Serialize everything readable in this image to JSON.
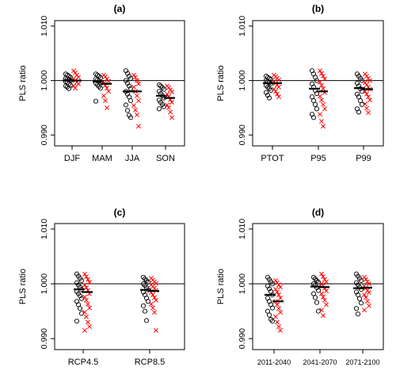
{
  "colors": {
    "black_series": "#000000",
    "red_series": "#ff0000",
    "reference_line": "#000000"
  },
  "chart_data": [
    {
      "type": "scatter",
      "title": "(a)",
      "ylabel": "PLS ratio",
      "ylim": [
        0.988,
        1.011
      ],
      "yticks": [
        "0.990",
        "1.000",
        "1.010"
      ],
      "ytick_values": [
        0.99,
        1.0,
        1.01
      ],
      "reference_line": 1.0,
      "categories": [
        "DJF",
        "MAM",
        "JJA",
        "SON"
      ],
      "series": [
        {
          "marker": "circle",
          "color": "#000000",
          "values": [
            [
              1.0012,
              1.001,
              1.0008,
              1.0006,
              1.0004,
              1.0003,
              1.0002,
              1.0,
              0.9998,
              0.9996,
              0.9994,
              0.9992,
              0.999,
              0.9988,
              0.9985
            ],
            [
              1.0012,
              1.001,
              1.0008,
              1.0005,
              1.0003,
              1.0001,
              0.9999,
              0.9997,
              0.9995,
              0.9992,
              0.9989,
              0.9986,
              0.9962
            ],
            [
              1.0018,
              1.0013,
              1.0008,
              1.0004,
              1.0,
              0.9995,
              0.999,
              0.9985,
              0.998,
              0.9975,
              0.997,
              0.9963,
              0.9955,
              0.9945,
              0.9936,
              0.9932
            ],
            [
              0.9992,
              0.999,
              0.9987,
              0.9984,
              0.998,
              0.9976,
              0.9972,
              0.9968,
              0.9964,
              0.996,
              0.9956,
              0.9952,
              0.9948
            ]
          ],
          "means": [
            1.0,
            0.9998,
            0.998,
            0.9972
          ]
        },
        {
          "marker": "cross",
          "color": "#ff0000",
          "values": [
            [
              1.0018,
              1.0014,
              1.001,
              1.0006,
              1.0003,
              1.0,
              0.9997,
              0.9994,
              0.999,
              0.9986
            ],
            [
              1.001,
              1.0007,
              1.0003,
              0.9999,
              0.9995,
              0.9991,
              0.9986,
              0.998,
              0.9972,
              0.9963,
              0.995
            ],
            [
              1.001,
              1.0006,
              1.0,
              0.9994,
              0.9988,
              0.998,
              0.9972,
              0.9963,
              0.9954,
              0.9946,
              0.9937,
              0.9916
            ],
            [
              0.999,
              0.9987,
              0.9983,
              0.9979,
              0.9975,
              0.997,
              0.9965,
              0.996,
              0.9955,
              0.995,
              0.9942,
              0.9932
            ]
          ],
          "means": [
            1.0,
            0.9994,
            0.998,
            0.9968
          ]
        }
      ]
    },
    {
      "type": "scatter",
      "title": "(b)",
      "ylabel": "PLS ratio",
      "ylim": [
        0.988,
        1.011
      ],
      "yticks": [
        "0.990",
        "1.000",
        "1.010"
      ],
      "ytick_values": [
        0.99,
        1.0,
        1.01
      ],
      "reference_line": 1.0,
      "categories": [
        "PTOT",
        "P95",
        "P99"
      ],
      "series": [
        {
          "marker": "circle",
          "color": "#000000",
          "values": [
            [
              1.0008,
              1.0006,
              1.0004,
              1.0002,
              1.0,
              0.9998,
              0.9996,
              0.9994,
              0.9991,
              0.9988,
              0.9985,
              0.9982,
              0.9978,
              0.9973,
              0.9968
            ],
            [
              1.0018,
              1.0012,
              1.0006,
              1.0,
              0.9994,
              0.9988,
              0.9982,
              0.9976,
              0.997,
              0.9963,
              0.9956,
              0.9948,
              0.9938,
              0.9932
            ],
            [
              1.0012,
              1.0008,
              1.0004,
              1.0,
              0.9995,
              0.999,
              0.9985,
              0.998,
              0.9975,
              0.997,
              0.9963,
              0.9956,
              0.9948,
              0.9942
            ]
          ],
          "means": [
            0.9995,
            0.9985,
            0.9986
          ]
        },
        {
          "marker": "cross",
          "color": "#ff0000",
          "values": [
            [
              1.001,
              1.0007,
              1.0004,
              1.0001,
              0.9998,
              0.9995,
              0.9992,
              0.9988,
              0.9984,
              0.998,
              0.9975,
              0.997
            ],
            [
              1.0018,
              1.0013,
              1.0008,
              1.0003,
              0.9997,
              0.9991,
              0.9985,
              0.9978,
              0.9971,
              0.9964,
              0.9956,
              0.9948,
              0.9938,
              0.9925,
              0.9916
            ],
            [
              1.0012,
              1.0008,
              1.0004,
              1.0,
              0.9996,
              0.9992,
              0.9988,
              0.9984,
              0.998,
              0.9975,
              0.997,
              0.9964,
              0.9957,
              0.9949,
              0.9941
            ]
          ],
          "means": [
            0.9995,
            0.998,
            0.9984
          ]
        }
      ]
    },
    {
      "type": "scatter",
      "title": "(c)",
      "ylabel": "PLS ratio",
      "ylim": [
        0.988,
        1.011
      ],
      "yticks": [
        "0.990",
        "1.000",
        "1.010"
      ],
      "ytick_values": [
        0.99,
        1.0,
        1.01
      ],
      "reference_line": 1.0,
      "categories": [
        "RCP4.5",
        "RCP8.5"
      ],
      "series": [
        {
          "marker": "circle",
          "color": "#000000",
          "values": [
            [
              1.0018,
              1.0014,
              1.001,
              1.0006,
              1.0002,
              0.9998,
              0.9994,
              0.999,
              0.9986,
              0.9982,
              0.9978,
              0.9973,
              0.9968,
              0.9962,
              0.9955,
              0.9946,
              0.9932
            ],
            [
              1.0012,
              1.0009,
              1.0006,
              1.0003,
              1.0,
              0.9997,
              0.9993,
              0.9989,
              0.9985,
              0.998,
              0.9974,
              0.9968,
              0.996,
              0.995,
              0.9933
            ]
          ],
          "means": [
            0.999,
            0.9989
          ]
        },
        {
          "marker": "cross",
          "color": "#ff0000",
          "values": [
            [
              1.0018,
              1.0013,
              1.0008,
              1.0003,
              0.9998,
              0.9993,
              0.9988,
              0.9982,
              0.9976,
              0.997,
              0.9963,
              0.9956,
              0.9948,
              0.994,
              0.993,
              0.9922,
              0.9915
            ],
            [
              1.001,
              1.0007,
              1.0004,
              1.0001,
              0.9998,
              0.9995,
              0.9992,
              0.9988,
              0.9984,
              0.998,
              0.9975,
              0.997,
              0.9963,
              0.9956,
              0.9948,
              0.9915
            ]
          ],
          "means": [
            0.9985,
            0.9987
          ]
        }
      ]
    },
    {
      "type": "scatter",
      "title": "(d)",
      "ylabel": "PLS ratio",
      "ylim": [
        0.988,
        1.011
      ],
      "yticks": [
        "0.990",
        "1.000",
        "1.010"
      ],
      "ytick_values": [
        0.99,
        1.0,
        1.01
      ],
      "reference_line": 1.0,
      "categories": [
        "2011-2040",
        "2041-2070",
        "2071-2100"
      ],
      "series": [
        {
          "marker": "circle",
          "color": "#000000",
          "values": [
            [
              1.0012,
              1.0008,
              1.0004,
              1.0,
              0.9996,
              0.9991,
              0.9986,
              0.998,
              0.9974,
              0.9968,
              0.9962,
              0.9956,
              0.995,
              0.9943,
              0.9935,
              0.9932
            ],
            [
              1.0012,
              1.0009,
              1.0006,
              1.0003,
              1.0,
              0.9997,
              0.9993,
              0.9988,
              0.9982,
              0.9975,
              0.9966,
              0.995
            ],
            [
              1.0018,
              1.0014,
              1.001,
              1.0006,
              1.0002,
              0.9998,
              0.9994,
              0.999,
              0.9985,
              0.998,
              0.9973,
              0.9965,
              0.9955,
              0.9945
            ]
          ],
          "means": [
            0.998,
            0.9995,
            0.9992
          ]
        },
        {
          "marker": "cross",
          "color": "#ff0000",
          "values": [
            [
              1.0006,
              1.0002,
              0.9998,
              0.9994,
              0.999,
              0.9985,
              0.998,
              0.9974,
              0.9968,
              0.9962,
              0.9955,
              0.9948,
              0.994,
              0.993,
              0.9922,
              0.9915
            ],
            [
              1.0018,
              1.0013,
              1.0008,
              1.0004,
              1.0,
              0.9996,
              0.9992,
              0.9987,
              0.9982,
              0.9976,
              0.997,
              0.9962,
              0.9952,
              0.9942
            ],
            [
              1.0012,
              1.0008,
              1.0004,
              1.0,
              0.9996,
              0.9992,
              0.9988,
              0.9984,
              0.998,
              0.9975,
              0.9968,
              0.996,
              0.9952
            ]
          ],
          "means": [
            0.9968,
            0.9994,
            0.9993
          ]
        }
      ]
    }
  ]
}
